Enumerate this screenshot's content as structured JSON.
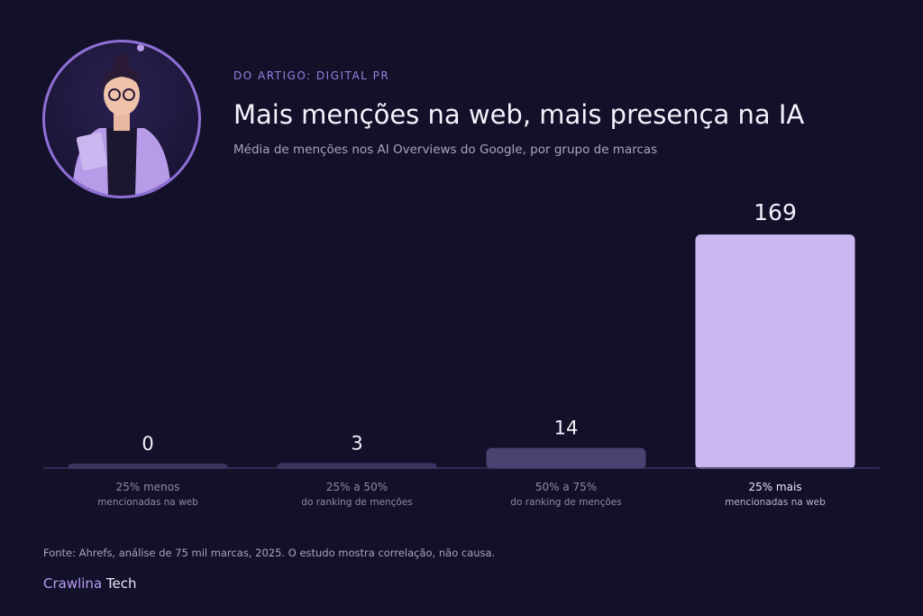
{
  "header": {
    "eyebrow": "DO ARTIGO: DIGITAL PR",
    "title": "Mais menções na web, mais presença na IA",
    "subtitle": "Média de menções nos AI Overviews do Google, por grupo de marcas"
  },
  "chart_data": {
    "type": "bar",
    "categories": [
      {
        "line1": "25% menos",
        "line2": "mencionadas na web"
      },
      {
        "line1": "25% a 50%",
        "line2": "do ranking de menções"
      },
      {
        "line1": "50% a 75%",
        "line2": "do ranking de menções"
      },
      {
        "line1": "25% mais",
        "line2": "mencionadas na web"
      }
    ],
    "values": [
      0,
      3,
      14,
      169
    ],
    "value_labels": [
      "0",
      "3",
      "14",
      "169"
    ],
    "ylim": [
      0,
      169
    ],
    "grid": false,
    "colors": [
      "#3a3560",
      "#3a3560",
      "#4a4270",
      "#cbb7f0"
    ],
    "highlight_index": 3
  },
  "footer": {
    "source": "Fonte: Ahrefs, análise de 75 mil marcas, 2025. O estudo mostra correlação, não causa.",
    "brand_part1": "Crawlina",
    "brand_part2": "Tech"
  }
}
